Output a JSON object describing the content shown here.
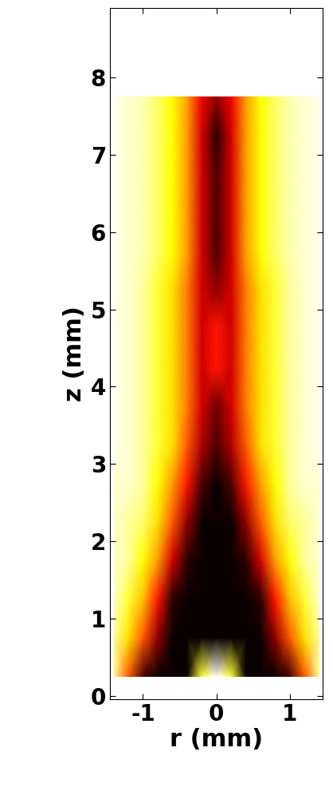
{
  "chart_data": {
    "type": "heatmap",
    "xlabel": "r (mm)",
    "ylabel": "z (mm)",
    "xlim": [
      -1.45,
      1.45
    ],
    "ylim": [
      -0.05,
      8.9
    ],
    "xticks": [
      -1,
      0,
      1
    ],
    "yticks": [
      0,
      1,
      2,
      3,
      4,
      5,
      6,
      7,
      8
    ],
    "color": "hot_r",
    "x": [
      -1.4,
      -1.2,
      -1.0,
      -0.8,
      -0.6,
      -0.4,
      -0.2,
      0.0,
      0.2,
      0.4,
      0.6,
      0.8,
      1.0,
      1.2,
      1.4
    ],
    "y": [
      0.25,
      0.75,
      1.25,
      1.75,
      2.25,
      2.75,
      3.25,
      3.75,
      4.25,
      4.75,
      5.25,
      5.75,
      6.25,
      6.75,
      7.25,
      7.75
    ],
    "cells": [
      [
        0.1,
        0.5,
        0.9,
        1,
        1,
        1,
        0.2,
        0.0,
        0.2,
        1,
        1,
        1,
        0.9,
        0.5,
        0.1
      ],
      [
        0.1,
        0.3,
        0.5,
        0.8,
        1,
        1,
        1,
        1,
        1,
        1,
        1,
        0.8,
        0.5,
        0.3,
        0.1
      ],
      [
        0.05,
        0.2,
        0.35,
        0.6,
        0.95,
        1,
        1,
        1,
        1,
        1,
        0.95,
        0.6,
        0.35,
        0.2,
        0.05
      ],
      [
        0.05,
        0.1,
        0.25,
        0.4,
        0.7,
        0.95,
        1,
        1,
        1,
        0.95,
        0.7,
        0.4,
        0.25,
        0.1,
        0.05
      ],
      [
        0.05,
        0.1,
        0.15,
        0.3,
        0.5,
        0.8,
        1,
        1,
        1,
        0.8,
        0.5,
        0.3,
        0.15,
        0.1,
        0.05
      ],
      [
        0.05,
        0.05,
        0.1,
        0.25,
        0.4,
        0.6,
        0.9,
        1,
        0.9,
        0.6,
        0.4,
        0.25,
        0.1,
        0.05,
        0.05
      ],
      [
        0.02,
        0.05,
        0.1,
        0.2,
        0.3,
        0.5,
        0.75,
        0.9,
        0.75,
        0.5,
        0.3,
        0.2,
        0.1,
        0.05,
        0.02
      ],
      [
        0.02,
        0.05,
        0.1,
        0.2,
        0.3,
        0.45,
        0.7,
        0.85,
        0.7,
        0.45,
        0.3,
        0.2,
        0.1,
        0.05,
        0.02
      ],
      [
        0.02,
        0.05,
        0.1,
        0.2,
        0.3,
        0.45,
        0.7,
        0.6,
        0.7,
        0.45,
        0.3,
        0.2,
        0.1,
        0.05,
        0.02
      ],
      [
        0.02,
        0.05,
        0.1,
        0.2,
        0.3,
        0.45,
        0.7,
        0.6,
        0.7,
        0.45,
        0.3,
        0.2,
        0.1,
        0.05,
        0.02
      ],
      [
        0.02,
        0.05,
        0.1,
        0.2,
        0.3,
        0.45,
        0.7,
        0.8,
        0.7,
        0.45,
        0.3,
        0.2,
        0.1,
        0.05,
        0.02
      ],
      [
        0.02,
        0.05,
        0.08,
        0.15,
        0.25,
        0.4,
        0.7,
        0.9,
        0.7,
        0.4,
        0.25,
        0.15,
        0.08,
        0.05,
        0.02
      ],
      [
        0.02,
        0.05,
        0.08,
        0.15,
        0.25,
        0.4,
        0.7,
        0.9,
        0.7,
        0.4,
        0.25,
        0.15,
        0.08,
        0.05,
        0.02
      ],
      [
        0.02,
        0.05,
        0.08,
        0.15,
        0.25,
        0.4,
        0.7,
        0.9,
        0.7,
        0.4,
        0.25,
        0.15,
        0.08,
        0.05,
        0.02
      ],
      [
        0.02,
        0.05,
        0.08,
        0.15,
        0.25,
        0.4,
        0.7,
        0.95,
        0.7,
        0.4,
        0.25,
        0.15,
        0.08,
        0.05,
        0.02
      ],
      [
        0.02,
        0.05,
        0.08,
        0.15,
        0.25,
        0.4,
        0.65,
        0.8,
        0.65,
        0.4,
        0.25,
        0.15,
        0.08,
        0.05,
        0.02
      ]
    ]
  }
}
